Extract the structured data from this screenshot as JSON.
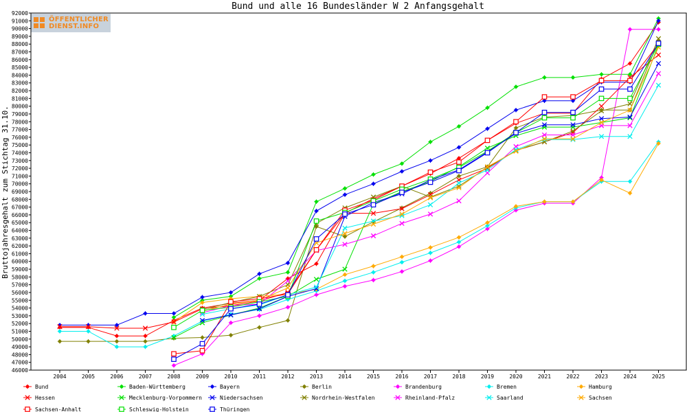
{
  "logo": {
    "line1": "ÖFFENTLICHER",
    "line2": "DIENST.INFO"
  },
  "chart_data": {
    "type": "line",
    "title": "Bund und alle 16 Bundesländer W 2 Anfangsgehalt",
    "xlabel": "",
    "ylabel": "Bruttojahresgehalt zum Stichtag 31.10.",
    "x": [
      "2004",
      "2005",
      "2006",
      "2007",
      "2008",
      "2009",
      "2010",
      "2011",
      "2012",
      "2013",
      "2014",
      "2015",
      "2016",
      "2017",
      "2018",
      "2019",
      "2020",
      "2021",
      "2022",
      "2023",
      "2024",
      "2025"
    ],
    "ylim": [
      46000,
      92000
    ],
    "ytick_step": 1000,
    "grid": false,
    "legend_position": "bottom",
    "series": [
      {
        "name": "Bund",
        "color": "#ff0000",
        "marker": "star",
        "values": [
          51500,
          51500,
          50400,
          50400,
          52400,
          54000,
          54600,
          55000,
          57800,
          59700,
          66200,
          68100,
          69700,
          71300,
          73300,
          75600,
          77800,
          79100,
          79100,
          83500,
          85500,
          90800
        ]
      },
      {
        "name": "Baden-Württemberg",
        "color": "#00e000",
        "marker": "star",
        "values": [
          null,
          null,
          null,
          null,
          52800,
          55000,
          55500,
          57800,
          58600,
          67700,
          69400,
          71200,
          72600,
          75400,
          77400,
          79800,
          82500,
          83700,
          83700,
          84100,
          84100,
          91300
        ]
      },
      {
        "name": "Bayern",
        "color": "#0000ee",
        "marker": "star",
        "values": [
          51800,
          51800,
          51800,
          53300,
          53300,
          55400,
          56000,
          58400,
          59800,
          66500,
          68600,
          70000,
          71600,
          73000,
          74700,
          77100,
          79500,
          80700,
          80700,
          83100,
          83100,
          91000
        ]
      },
      {
        "name": "Berlin",
        "color": "#808000",
        "marker": "star",
        "values": [
          49700,
          49700,
          49700,
          49700,
          50100,
          50200,
          50500,
          51500,
          52400,
          64500,
          63200,
          65100,
          66900,
          68800,
          71000,
          72200,
          77200,
          78600,
          78800,
          79500,
          79500,
          88400
        ]
      },
      {
        "name": "Brandenburg",
        "color": "#ff00ff",
        "marker": "star",
        "values": [
          null,
          null,
          null,
          null,
          46600,
          48100,
          52100,
          53000,
          54100,
          55700,
          56800,
          57600,
          58700,
          60100,
          61900,
          64200,
          66600,
          67500,
          67500,
          70800,
          89900,
          89900
        ]
      },
      {
        "name": "Bremen",
        "color": "#00eeee",
        "marker": "star",
        "values": [
          51000,
          51000,
          49000,
          49000,
          50400,
          52300,
          53200,
          53800,
          55100,
          56200,
          57500,
          58600,
          59900,
          61100,
          62500,
          64600,
          66900,
          67700,
          67700,
          70300,
          70300,
          75400
        ]
      },
      {
        "name": "Hamburg",
        "color": "#ffaa00",
        "marker": "star",
        "values": [
          null,
          null,
          null,
          null,
          52200,
          54700,
          55200,
          55500,
          55800,
          56400,
          58300,
          59400,
          60600,
          61800,
          63100,
          65000,
          67100,
          67700,
          67700,
          70500,
          68800,
          75200
        ]
      },
      {
        "name": "Hessen",
        "color": "#ff0000",
        "marker": "x",
        "values": [
          51600,
          51600,
          51400,
          51400,
          52200,
          53900,
          54300,
          54900,
          56000,
          61500,
          66200,
          66200,
          66800,
          68600,
          70500,
          72000,
          74300,
          75400,
          76600,
          80000,
          83700,
          86600
        ]
      },
      {
        "name": "Mecklenburg-Vorpommern",
        "color": "#00e000",
        "marker": "x",
        "values": [
          null,
          null,
          null,
          null,
          50200,
          52100,
          53100,
          54000,
          55500,
          57700,
          59000,
          67400,
          69000,
          70300,
          72200,
          74600,
          76200,
          77300,
          77300,
          77900,
          78500,
          87900
        ]
      },
      {
        "name": "Niedersachsen",
        "color": "#0000ee",
        "marker": "x",
        "values": [
          null,
          null,
          null,
          null,
          null,
          52400,
          53100,
          53900,
          55500,
          56500,
          65800,
          67600,
          68700,
          70500,
          71800,
          74100,
          76500,
          77600,
          77600,
          78400,
          78600,
          85500
        ]
      },
      {
        "name": "Nordrhein-Westfalen",
        "color": "#808000",
        "marker": "x",
        "values": [
          null,
          null,
          null,
          null,
          null,
          53800,
          54700,
          55500,
          57000,
          64900,
          66900,
          68300,
          69700,
          68300,
          69700,
          72100,
          74300,
          75400,
          76800,
          79400,
          80300,
          88700
        ]
      },
      {
        "name": "Rheinland-Pfalz",
        "color": "#ff00ff",
        "marker": "x",
        "values": [
          null,
          null,
          null,
          null,
          null,
          53400,
          54300,
          54500,
          57500,
          61400,
          62200,
          63300,
          64900,
          66100,
          67800,
          71400,
          74800,
          76300,
          76300,
          77500,
          77500,
          84200
        ]
      },
      {
        "name": "Saarland",
        "color": "#00eeee",
        "marker": "x",
        "values": [
          null,
          null,
          null,
          null,
          null,
          53200,
          53900,
          54400,
          55700,
          56700,
          64300,
          65200,
          65900,
          67300,
          70100,
          71800,
          74400,
          75700,
          75700,
          76100,
          76100,
          82700
        ]
      },
      {
        "name": "Sachsen",
        "color": "#ffaa00",
        "marker": "x",
        "values": [
          null,
          null,
          null,
          null,
          null,
          53600,
          54500,
          55000,
          56600,
          62400,
          63600,
          64800,
          66100,
          68200,
          69500,
          72200,
          74200,
          75800,
          75800,
          77900,
          79500,
          87600
        ]
      },
      {
        "name": "Sachsen-Anhalt",
        "color": "#ff0000",
        "marker": "square",
        "values": [
          null,
          null,
          null,
          null,
          48100,
          48500,
          54800,
          55200,
          55800,
          61500,
          66600,
          67900,
          69700,
          71500,
          72800,
          75600,
          78000,
          81200,
          81200,
          83300,
          83300,
          88000
        ]
      },
      {
        "name": "Schleswig-Holstein",
        "color": "#00e000",
        "marker": "square",
        "values": [
          null,
          null,
          null,
          null,
          51500,
          53700,
          54100,
          54800,
          55500,
          65200,
          66300,
          67800,
          69300,
          70600,
          72100,
          74200,
          76600,
          78500,
          78500,
          81000,
          81000,
          88000
        ]
      },
      {
        "name": "Thüringen",
        "color": "#0000ee",
        "marker": "square",
        "values": [
          null,
          null,
          null,
          null,
          47400,
          49400,
          53900,
          54500,
          55700,
          62900,
          66100,
          67300,
          68900,
          70200,
          71700,
          74000,
          76600,
          79200,
          79200,
          82200,
          82200,
          88100
        ]
      }
    ]
  }
}
